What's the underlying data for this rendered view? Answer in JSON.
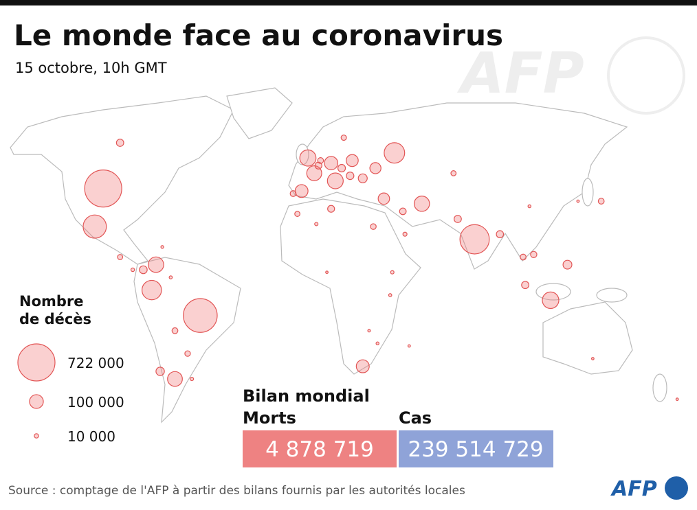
{
  "header": {
    "title": "Le monde face au coronavirus",
    "subtitle": "15 octobre, 10h GMT",
    "watermark": "AFP"
  },
  "legend": {
    "title_lines": [
      "Nombre",
      "de décès"
    ],
    "items": [
      {
        "value": 722000,
        "label": "722 000"
      },
      {
        "value": 100000,
        "label": "100 000"
      },
      {
        "value": 10000,
        "label": "10 000"
      }
    ]
  },
  "map": {
    "bubbles": [
      {
        "lon": -98,
        "lat": 42,
        "deaths": 722000
      },
      {
        "lon": -52,
        "lat": -8,
        "deaths": 601000
      },
      {
        "lon": 78,
        "lat": 22,
        "deaths": 452000
      },
      {
        "lon": -102,
        "lat": 27,
        "deaths": 283000
      },
      {
        "lon": 40,
        "lat": 56,
        "deaths": 220000
      },
      {
        "lon": -75,
        "lat": 2,
        "deaths": 199000
      },
      {
        "lon": 114,
        "lat": -2,
        "deaths": 143000
      },
      {
        "lon": -1,
        "lat": 54,
        "deaths": 138000
      },
      {
        "lon": 12,
        "lat": 45,
        "deaths": 131000
      },
      {
        "lon": -73,
        "lat": 12,
        "deaths": 126000
      },
      {
        "lon": 53,
        "lat": 36,
        "deaths": 123000
      },
      {
        "lon": 2,
        "lat": 48,
        "deaths": 117000
      },
      {
        "lon": -64,
        "lat": -33,
        "deaths": 115000
      },
      {
        "lon": 10,
        "lat": 52,
        "deaths": 94000
      },
      {
        "lon": 25,
        "lat": -28,
        "deaths": 88000
      },
      {
        "lon": -4,
        "lat": 41,
        "deaths": 87000
      },
      {
        "lon": 20,
        "lat": 53,
        "deaths": 76000
      },
      {
        "lon": 35,
        "lat": 38,
        "deaths": 68000
      },
      {
        "lon": 31,
        "lat": 50,
        "deaths": 65000
      },
      {
        "lon": 25,
        "lat": 46,
        "deaths": 42000
      },
      {
        "lon": 122,
        "lat": 12,
        "deaths": 41000
      },
      {
        "lon": -71,
        "lat": -30,
        "deaths": 37000
      },
      {
        "lon": -79,
        "lat": 10,
        "deaths": 32000
      },
      {
        "lon": 15,
        "lat": 50,
        "deaths": 30000
      },
      {
        "lon": 19,
        "lat": 47,
        "deaths": 30000
      },
      {
        "lon": -90,
        "lat": 60,
        "deaths": 28000
      },
      {
        "lon": 70,
        "lat": 30,
        "deaths": 28000
      },
      {
        "lon": 102,
        "lat": 4,
        "deaths": 28000
      },
      {
        "lon": 90,
        "lat": 24,
        "deaths": 27000
      },
      {
        "lon": 4,
        "lat": 51,
        "deaths": 25000
      },
      {
        "lon": 44,
        "lat": 33,
        "deaths": 23000
      },
      {
        "lon": 106,
        "lat": 16,
        "deaths": 21000
      },
      {
        "lon": 138,
        "lat": 37,
        "deaths": 18000
      },
      {
        "lon": -64,
        "lat": -14,
        "deaths": 18000
      },
      {
        "lon": 101,
        "lat": 15,
        "deaths": 18000
      },
      {
        "lon": -8,
        "lat": 40,
        "deaths": 18000
      },
      {
        "lon": 5,
        "lat": 53,
        "deaths": 18000
      },
      {
        "lon": 30,
        "lat": 27,
        "deaths": 17000
      },
      {
        "lon": 16,
        "lat": 62,
        "deaths": 15000
      },
      {
        "lon": -6,
        "lat": 32,
        "deaths": 14000
      },
      {
        "lon": -90,
        "lat": 15,
        "deaths": 14000
      },
      {
        "lon": 68,
        "lat": 48,
        "deaths": 14000
      },
      {
        "lon": 45,
        "lat": 24,
        "deaths": 8700
      },
      {
        "lon": 39,
        "lat": 9,
        "deaths": 6000
      },
      {
        "lon": 38,
        "lat": 0,
        "deaths": 5000
      },
      {
        "lon": -66,
        "lat": 7,
        "deaths": 5000
      },
      {
        "lon": 104,
        "lat": 35,
        "deaths": 4600
      },
      {
        "lon": 8,
        "lat": 9,
        "deaths": 3000
      },
      {
        "lon": 134,
        "lat": -25,
        "deaths": 1500
      },
      {
        "lon": 3,
        "lat": 28,
        "deaths": 5900
      },
      {
        "lon": 10,
        "lat": 34,
        "deaths": 25000
      },
      {
        "lon": 28,
        "lat": -14,
        "deaths": 3600
      },
      {
        "lon": 32,
        "lat": -19,
        "deaths": 4600
      },
      {
        "lon": 47,
        "lat": -20,
        "deaths": 960
      },
      {
        "lon": -56,
        "lat": -33,
        "deaths": 6100
      },
      {
        "lon": -58,
        "lat": -23,
        "deaths": 16000
      },
      {
        "lon": 127,
        "lat": 37,
        "deaths": 2600
      },
      {
        "lon": 174,
        "lat": -41,
        "deaths": 28
      },
      {
        "lon": -84,
        "lat": 10,
        "deaths": 6800
      },
      {
        "lon": -70,
        "lat": 19,
        "deaths": 4100
      }
    ]
  },
  "summary": {
    "title": "Bilan mondial",
    "deaths_label": "Morts",
    "deaths": {
      "value": 4878719,
      "label": "4 878 719"
    },
    "cases_label": "Cas",
    "cases": {
      "value": 239514729,
      "label": "239 514 729"
    }
  },
  "footer": {
    "source": "Source : comptage de l'AFP à partir des bilans fournis par les autorités locales",
    "logo": "AFP"
  }
}
